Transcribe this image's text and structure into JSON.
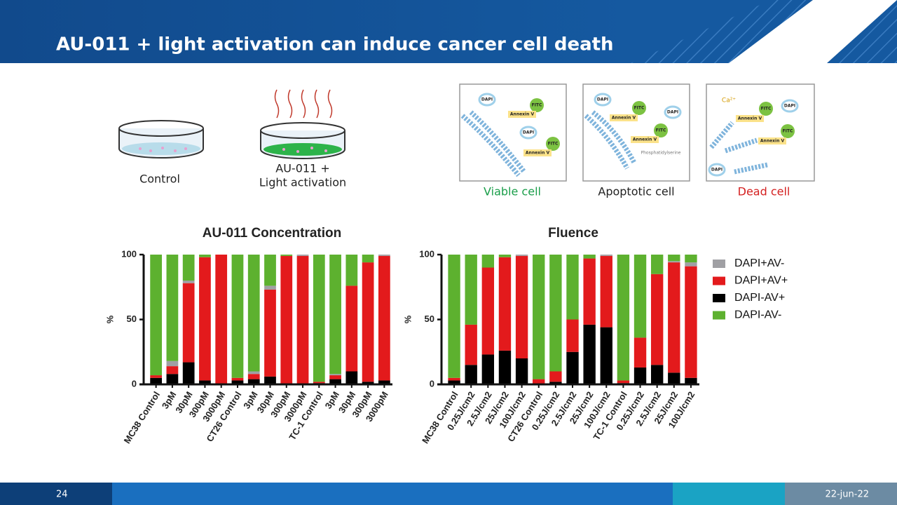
{
  "header": {
    "title": "AU-011 + light activation can induce cancer cell death"
  },
  "dishes": [
    {
      "lines": [
        "Control"
      ]
    },
    {
      "lines": [
        "AU-011 +",
        "Light activation"
      ]
    }
  ],
  "panels": [
    {
      "caption": "Viable cell",
      "labels": [
        "DAPI",
        "FITC",
        "Annexin V",
        "DAPI",
        "FITC",
        "Annexin V"
      ]
    },
    {
      "caption": "Apoptotic cell",
      "labels": [
        "DAPI",
        "FITC",
        "Annexin V",
        "DAPI",
        "FITC",
        "Annexin V",
        "Phosphatidylserine"
      ]
    },
    {
      "caption": "Dead cell",
      "labels": [
        "Ca²⁺",
        "FITC",
        "DAPI",
        "Annexin V",
        "FITC",
        "Annexin V",
        "DAPI"
      ]
    }
  ],
  "chart_data": [
    {
      "type": "bar",
      "title": "AU-011 Concentration",
      "y_label": "%",
      "categories": [
        "MC38 Control",
        "3pM",
        "30pM",
        "300pM",
        "3000pM",
        "CT26 Control",
        "3pM",
        "30pM",
        "300pM",
        "3000pM",
        "TC-1 Control",
        "3pM",
        "30pM",
        "300pM",
        "3000pM"
      ],
      "ylim": [
        0,
        100
      ],
      "yticks": [
        0,
        50,
        100
      ],
      "series": [
        {
          "values": [
            0,
            4,
            2,
            0,
            0,
            0,
            2,
            3,
            0,
            1,
            0,
            1,
            0,
            0,
            1
          ]
        },
        {
          "values": [
            2,
            6,
            61,
            95,
            100,
            2,
            4,
            67,
            99,
            99,
            1,
            3,
            66,
            92,
            96
          ]
        },
        {
          "values": [
            5,
            8,
            17,
            3,
            0,
            3,
            4,
            6,
            0,
            0,
            1,
            4,
            10,
            2,
            3
          ]
        },
        {
          "values": [
            93,
            82,
            20,
            2,
            0,
            95,
            90,
            24,
            1,
            0,
            98,
            92,
            24,
            6,
            0
          ]
        }
      ]
    },
    {
      "type": "bar",
      "title": "Fluence",
      "y_label": "%",
      "categories": [
        "MC38 Control",
        "0.25J/cm2",
        "2.5J/cm2",
        "25J/cm2",
        "100J/cm2",
        "CT26 Control",
        "0.25J/cm2",
        "2.5J/cm2",
        "25J/cm2",
        "100J/cm2",
        "TC-1 Control",
        "0.25J/cm2",
        "2.5J/cm2",
        "25J/cm2",
        "100J/cm2"
      ],
      "ylim": [
        0,
        100
      ],
      "yticks": [
        0,
        50,
        100
      ],
      "series": [
        {
          "name": "DAPI+AV-",
          "color": "#a0a0a4",
          "values": [
            0,
            0,
            0,
            0,
            1,
            0,
            0,
            0,
            0,
            1,
            0,
            0,
            0,
            1,
            3
          ]
        },
        {
          "name": "DAPI+AV+",
          "color": "#e31a1c",
          "values": [
            2,
            31,
            67,
            72,
            79,
            4,
            8,
            25,
            51,
            55,
            2,
            23,
            70,
            85,
            86
          ]
        },
        {
          "name": "DAPI-AV+",
          "color": "#000000",
          "values": [
            3,
            15,
            23,
            26,
            20,
            0,
            2,
            25,
            46,
            44,
            1,
            13,
            15,
            9,
            5
          ]
        },
        {
          "name": "DAPI-AV-",
          "color": "#5db12f",
          "values": [
            95,
            54,
            10,
            2,
            0,
            96,
            90,
            50,
            3,
            0,
            97,
            64,
            15,
            5,
            6
          ]
        }
      ]
    }
  ],
  "footer": {
    "page": "24",
    "date": "22-jun-22"
  }
}
